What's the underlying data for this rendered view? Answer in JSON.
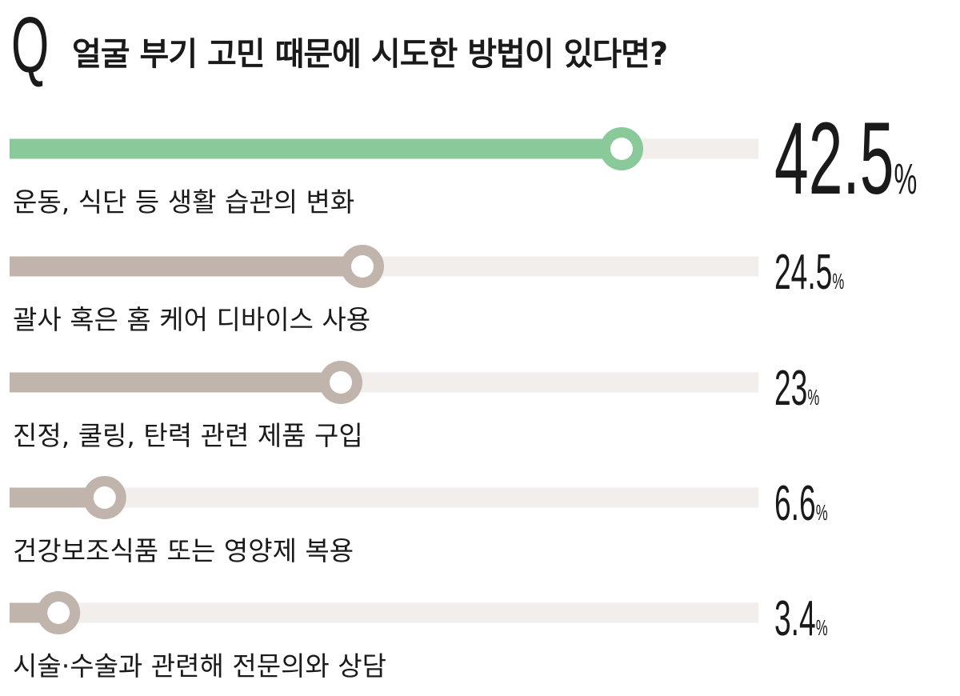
{
  "question": {
    "mark": "Q",
    "text": "얼굴 부기 고민 때문에 시도한 방법이 있다면?"
  },
  "colors": {
    "highlight": "#8ac99a",
    "bar": "#c1b4ac",
    "track": "#f2eeec"
  },
  "chart_data": {
    "type": "bar",
    "orientation": "horizontal",
    "unit": "%",
    "xlim": [
      0,
      100
    ],
    "categories": [
      "운동, 식단 등 생활 습관의 변화",
      "괄사 혹은 홈 케어 디바이스 사용",
      "진정, 쿨링, 탄력 관련 제품 구입",
      "건강보조식품 또는 영양제 복용",
      "시술·수술과 관련해 전문의와 상담"
    ],
    "values": [
      42.5,
      24.5,
      23,
      6.6,
      3.4
    ],
    "value_labels": [
      "42.5",
      "24.5",
      "23",
      "6.6",
      "3.4"
    ],
    "highlight_index": 0
  }
}
